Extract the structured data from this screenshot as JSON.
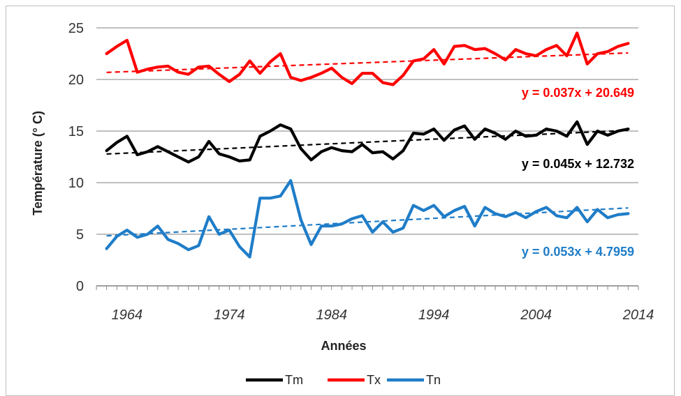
{
  "chart_data": {
    "type": "line",
    "title": "",
    "xlabel": "Années",
    "ylabel": "Température (° C)",
    "xlim": [
      1961,
      2014
    ],
    "ylim": [
      0,
      25
    ],
    "y_ticks": [
      "0",
      "5",
      "10",
      "15",
      "20",
      "25"
    ],
    "x_ticks": [
      {
        "value": 1964,
        "label": "1964"
      },
      {
        "value": 1974,
        "label": "1974"
      },
      {
        "value": 1984,
        "label": "1984"
      },
      {
        "value": 1994,
        "label": "1994"
      },
      {
        "value": 2004,
        "label": "2004"
      },
      {
        "value": 2014,
        "label": "2014"
      }
    ],
    "grid": "horizontal",
    "legend_position": "bottom",
    "x": [
      1962,
      1963,
      1964,
      1965,
      1966,
      1967,
      1968,
      1969,
      1970,
      1971,
      1972,
      1973,
      1974,
      1975,
      1976,
      1977,
      1978,
      1979,
      1980,
      1981,
      1982,
      1983,
      1984,
      1985,
      1986,
      1987,
      1988,
      1989,
      1990,
      1991,
      1992,
      1993,
      1994,
      1995,
      1996,
      1997,
      1998,
      1999,
      2000,
      2001,
      2002,
      2003,
      2004,
      2005,
      2006,
      2007,
      2008,
      2009,
      2010,
      2011,
      2012,
      2013
    ],
    "series": [
      {
        "name": "Tm",
        "color": "#000000",
        "values": [
          13.1,
          13.9,
          14.5,
          12.7,
          13.0,
          13.5,
          13.0,
          12.5,
          12.0,
          12.5,
          14.0,
          12.8,
          12.5,
          12.1,
          12.2,
          14.5,
          15.0,
          15.6,
          15.2,
          13.3,
          12.2,
          13.0,
          13.4,
          13.1,
          13.0,
          13.7,
          12.9,
          13.0,
          12.3,
          13.1,
          14.8,
          14.7,
          15.2,
          14.1,
          15.1,
          15.5,
          14.2,
          15.2,
          14.8,
          14.2,
          15.0,
          14.5,
          14.6,
          15.2,
          15.0,
          14.5,
          15.9,
          13.7,
          15.0,
          14.6,
          15.0,
          15.2
        ],
        "trend": {
          "slope": 0.045,
          "intercept": 12.732,
          "equation": "y = 0.045x + 12.732",
          "color": "#000000"
        }
      },
      {
        "name": "Tx",
        "color": "#ff0000",
        "values": [
          22.5,
          23.2,
          23.8,
          20.7,
          21.0,
          21.2,
          21.3,
          20.7,
          20.5,
          21.2,
          21.3,
          20.5,
          19.8,
          20.5,
          21.8,
          20.6,
          21.7,
          22.5,
          20.2,
          19.9,
          20.2,
          20.6,
          21.1,
          20.2,
          19.6,
          20.6,
          20.6,
          19.7,
          19.5,
          20.4,
          21.8,
          22.0,
          22.9,
          21.5,
          23.2,
          23.3,
          22.9,
          23.0,
          22.5,
          21.9,
          22.9,
          22.5,
          22.3,
          22.9,
          23.3,
          22.3,
          24.5,
          21.5,
          22.5,
          22.7,
          23.2,
          23.5
        ],
        "trend": {
          "slope": 0.037,
          "intercept": 20.649,
          "equation": "y = 0.037x + 20.649",
          "color": "#ff0000"
        }
      },
      {
        "name": "Tn",
        "color": "#1f7dc8",
        "values": [
          3.6,
          4.8,
          5.4,
          4.7,
          5.0,
          5.8,
          4.5,
          4.1,
          3.5,
          3.9,
          6.7,
          5.0,
          5.4,
          3.8,
          2.8,
          8.5,
          8.5,
          8.7,
          10.2,
          6.4,
          4.0,
          5.8,
          5.8,
          6.0,
          6.5,
          6.8,
          5.2,
          6.2,
          5.2,
          5.6,
          7.8,
          7.3,
          7.8,
          6.7,
          7.3,
          7.7,
          5.8,
          7.6,
          7.0,
          6.7,
          7.1,
          6.6,
          7.2,
          7.6,
          6.8,
          6.6,
          7.6,
          6.2,
          7.4,
          6.6,
          6.9,
          7.0
        ],
        "trend": {
          "slope": 0.053,
          "intercept": 4.7959,
          "equation": "y = 0.053x + 4.7959",
          "color": "#1f7dc8"
        }
      }
    ]
  }
}
